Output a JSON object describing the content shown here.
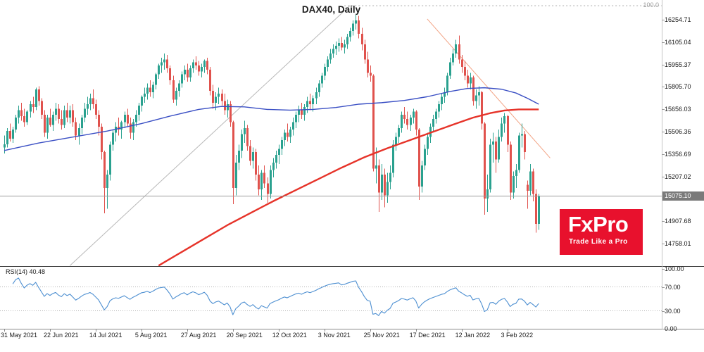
{
  "meta": {
    "title": "DAX40, Daily"
  },
  "logo": {
    "name": "FxPro",
    "tagline": "Trade Like a Pro",
    "bg": "#e8112d"
  },
  "price_axis": {
    "ticks": [
      "16254.71",
      "16105.04",
      "15955.37",
      "15805.70",
      "15656.03",
      "15506.36",
      "15356.69",
      "15207.02",
      "14907.68",
      "14758.01"
    ],
    "current_price": "15075.10",
    "fib_label": "100.0"
  },
  "rsi": {
    "label": "RSI(14) 40.48",
    "period": 14,
    "last_value": 40.48,
    "ticks": [
      "100.00",
      "70.00",
      "30.00",
      "0.00"
    ],
    "levels": [
      70,
      30
    ]
  },
  "time_axis": {
    "labels": [
      "31 May 2021",
      "22 Jun 2021",
      "14 Jul 2021",
      "5 Aug 2021",
      "27 Aug 2021",
      "20 Sep 2021",
      "12 Oct 2021",
      "3 Nov 2021",
      "25 Nov 2021",
      "17 Dec 2021",
      "12 Jan 2022",
      "3 Feb 2022"
    ],
    "label_indices": [
      0,
      16,
      32,
      48,
      64,
      80,
      96,
      112,
      128,
      144,
      160,
      176
    ]
  },
  "chart_data": {
    "type": "candlestick",
    "symbol": "DAX40",
    "timeframe": "Daily",
    "title": "DAX40, Daily",
    "ylim": [
      14602,
      16387
    ],
    "price_tick_step": 149.67,
    "current_price": 15075.1,
    "grid": false,
    "colors": {
      "up": "#2aa18f",
      "down": "#e0524d",
      "ma_blue": "#3a4fc4",
      "ma_red": "#e63329",
      "trend_gray": "#b8b8b8",
      "trend_salmon": "#f2a384",
      "rsi": "#4d8fd1",
      "price_line": "#9b9b9b",
      "fib": "#a8a8a8"
    },
    "candles": [
      [
        15400,
        15480,
        15360,
        15421
      ],
      [
        15421,
        15530,
        15400,
        15510
      ],
      [
        15510,
        15560,
        15440,
        15460
      ],
      [
        15460,
        15540,
        15430,
        15520
      ],
      [
        15520,
        15620,
        15500,
        15600
      ],
      [
        15600,
        15680,
        15560,
        15650
      ],
      [
        15650,
        15700,
        15580,
        15610
      ],
      [
        15610,
        15660,
        15540,
        15570
      ],
      [
        15570,
        15650,
        15550,
        15640
      ],
      [
        15640,
        15710,
        15600,
        15690
      ],
      [
        15690,
        15740,
        15630,
        15670
      ],
      [
        15670,
        15800,
        15650,
        15790
      ],
      [
        15790,
        15810,
        15680,
        15710
      ],
      [
        15710,
        15730,
        15590,
        15620
      ],
      [
        15620,
        15650,
        15470,
        15500
      ],
      [
        15500,
        15620,
        15460,
        15600
      ],
      [
        15600,
        15660,
        15540,
        15550
      ],
      [
        15550,
        15640,
        15510,
        15620
      ],
      [
        15620,
        15700,
        15580,
        15660
      ],
      [
        15660,
        15690,
        15560,
        15590
      ],
      [
        15590,
        15650,
        15520,
        15550
      ],
      [
        15550,
        15680,
        15530,
        15650
      ],
      [
        15650,
        15700,
        15570,
        15600
      ],
      [
        15600,
        15680,
        15560,
        15650
      ],
      [
        15650,
        15690,
        15540,
        15570
      ],
      [
        15570,
        15600,
        15450,
        15480
      ],
      [
        15480,
        15560,
        15420,
        15530
      ],
      [
        15530,
        15620,
        15490,
        15600
      ],
      [
        15600,
        15700,
        15570,
        15660
      ],
      [
        15660,
        15740,
        15620,
        15690
      ],
      [
        15690,
        15760,
        15650,
        15730
      ],
      [
        15730,
        15790,
        15660,
        15690
      ],
      [
        15690,
        15720,
        15590,
        15620
      ],
      [
        15620,
        15650,
        15480,
        15540
      ],
      [
        15540,
        15560,
        15320,
        15370
      ],
      [
        15370,
        15380,
        14960,
        15130
      ],
      [
        15130,
        15250,
        14990,
        15220
      ],
      [
        15220,
        15440,
        15180,
        15420
      ],
      [
        15420,
        15520,
        15380,
        15500
      ],
      [
        15500,
        15570,
        15440,
        15540
      ],
      [
        15540,
        15600,
        15480,
        15520
      ],
      [
        15520,
        15580,
        15460,
        15570
      ],
      [
        15570,
        15640,
        15530,
        15620
      ],
      [
        15620,
        15660,
        15540,
        15560
      ],
      [
        15560,
        15600,
        15460,
        15500
      ],
      [
        15500,
        15590,
        15450,
        15570
      ],
      [
        15570,
        15650,
        15540,
        15620
      ],
      [
        15620,
        15700,
        15580,
        15680
      ],
      [
        15680,
        15750,
        15640,
        15740
      ],
      [
        15740,
        15800,
        15700,
        15760
      ],
      [
        15760,
        15830,
        15720,
        15800
      ],
      [
        15800,
        15850,
        15740,
        15770
      ],
      [
        15770,
        15840,
        15730,
        15820
      ],
      [
        15820,
        15900,
        15790,
        15890
      ],
      [
        15890,
        15960,
        15860,
        15950
      ],
      [
        15950,
        16000,
        15900,
        15970
      ],
      [
        15970,
        16030,
        15920,
        15990
      ],
      [
        15990,
        16020,
        15900,
        15930
      ],
      [
        15930,
        15950,
        15820,
        15850
      ],
      [
        15850,
        15880,
        15700,
        15720
      ],
      [
        15720,
        15800,
        15680,
        15780
      ],
      [
        15780,
        15850,
        15740,
        15830
      ],
      [
        15830,
        15910,
        15800,
        15890
      ],
      [
        15890,
        15950,
        15850,
        15920
      ],
      [
        15920,
        15960,
        15840,
        15870
      ],
      [
        15870,
        15950,
        15840,
        15930
      ],
      [
        15930,
        15990,
        15900,
        15970
      ],
      [
        15970,
        16010,
        15920,
        15950
      ],
      [
        15950,
        15980,
        15880,
        15910
      ],
      [
        15910,
        15960,
        15870,
        15940
      ],
      [
        15940,
        15990,
        15900,
        15980
      ],
      [
        15980,
        16000,
        15890,
        15920
      ],
      [
        15920,
        15940,
        15750,
        15780
      ],
      [
        15780,
        15820,
        15660,
        15700
      ],
      [
        15700,
        15770,
        15650,
        15740
      ],
      [
        15740,
        15800,
        15690,
        15760
      ],
      [
        15760,
        15790,
        15680,
        15710
      ],
      [
        15710,
        15760,
        15620,
        15650
      ],
      [
        15650,
        15720,
        15600,
        15690
      ],
      [
        15690,
        15710,
        15540,
        15570
      ],
      [
        15570,
        15580,
        15020,
        15130
      ],
      [
        15130,
        15350,
        15080,
        15300
      ],
      [
        15300,
        15420,
        15250,
        15380
      ],
      [
        15380,
        15520,
        15330,
        15490
      ],
      [
        15490,
        15580,
        15430,
        15530
      ],
      [
        15530,
        15550,
        15380,
        15410
      ],
      [
        15410,
        15450,
        15280,
        15310
      ],
      [
        15310,
        15400,
        15260,
        15370
      ],
      [
        15370,
        15390,
        15180,
        15220
      ],
      [
        15220,
        15280,
        15080,
        15120
      ],
      [
        15120,
        15250,
        15050,
        15230
      ],
      [
        15230,
        15280,
        15130,
        15160
      ],
      [
        15160,
        15200,
        15030,
        15090
      ],
      [
        15090,
        15280,
        15060,
        15250
      ],
      [
        15250,
        15330,
        15200,
        15300
      ],
      [
        15300,
        15380,
        15260,
        15350
      ],
      [
        15350,
        15420,
        15290,
        15390
      ],
      [
        15390,
        15470,
        15350,
        15450
      ],
      [
        15450,
        15520,
        15410,
        15500
      ],
      [
        15500,
        15560,
        15440,
        15470
      ],
      [
        15470,
        15540,
        15430,
        15520
      ],
      [
        15520,
        15600,
        15480,
        15570
      ],
      [
        15570,
        15640,
        15530,
        15620
      ],
      [
        15620,
        15680,
        15570,
        15650
      ],
      [
        15650,
        15700,
        15590,
        15620
      ],
      [
        15620,
        15690,
        15580,
        15670
      ],
      [
        15670,
        15740,
        15630,
        15710
      ],
      [
        15710,
        15760,
        15650,
        15690
      ],
      [
        15690,
        15750,
        15640,
        15730
      ],
      [
        15730,
        15800,
        15690,
        15770
      ],
      [
        15770,
        15850,
        15740,
        15830
      ],
      [
        15830,
        15900,
        15800,
        15880
      ],
      [
        15880,
        15960,
        15850,
        15940
      ],
      [
        15940,
        16010,
        15910,
        15990
      ],
      [
        15990,
        16060,
        15960,
        16030
      ],
      [
        16030,
        16090,
        16000,
        16060
      ],
      [
        16060,
        16110,
        16020,
        16080
      ],
      [
        16080,
        16130,
        16040,
        16100
      ],
      [
        16100,
        16140,
        16050,
        16070
      ],
      [
        16070,
        16120,
        16030,
        16090
      ],
      [
        16090,
        16160,
        16060,
        16140
      ],
      [
        16140,
        16200,
        16110,
        16180
      ],
      [
        16180,
        16250,
        16150,
        16230
      ],
      [
        16230,
        16290,
        16190,
        16250
      ],
      [
        16250,
        16280,
        16130,
        16160
      ],
      [
        16160,
        16200,
        16050,
        16090
      ],
      [
        16090,
        16120,
        15960,
        15990
      ],
      [
        15990,
        16040,
        15870,
        15900
      ],
      [
        15900,
        15950,
        15840,
        15880
      ],
      [
        15880,
        15890,
        15240,
        15260
      ],
      [
        15260,
        15400,
        15160,
        15280
      ],
      [
        15280,
        15320,
        14970,
        15100
      ],
      [
        15100,
        15290,
        15050,
        15220
      ],
      [
        15220,
        15260,
        15000,
        15080
      ],
      [
        15080,
        15230,
        15030,
        15170
      ],
      [
        15170,
        15280,
        15120,
        15230
      ],
      [
        15230,
        15450,
        15200,
        15420
      ],
      [
        15420,
        15500,
        15380,
        15470
      ],
      [
        15470,
        15550,
        15430,
        15530
      ],
      [
        15530,
        15640,
        15500,
        15620
      ],
      [
        15620,
        15670,
        15560,
        15590
      ],
      [
        15590,
        15640,
        15520,
        15550
      ],
      [
        15550,
        15620,
        15510,
        15600
      ],
      [
        15600,
        15660,
        15560,
        15640
      ],
      [
        15640,
        15650,
        15480,
        15520
      ],
      [
        15520,
        15530,
        15050,
        15140
      ],
      [
        15140,
        15310,
        15100,
        15280
      ],
      [
        15280,
        15420,
        15250,
        15390
      ],
      [
        15390,
        15500,
        15350,
        15470
      ],
      [
        15470,
        15560,
        15430,
        15540
      ],
      [
        15540,
        15620,
        15510,
        15590
      ],
      [
        15590,
        15660,
        15560,
        15640
      ],
      [
        15640,
        15710,
        15600,
        15690
      ],
      [
        15690,
        15760,
        15650,
        15740
      ],
      [
        15740,
        15800,
        15700,
        15770
      ],
      [
        15770,
        15900,
        15750,
        15880
      ],
      [
        15880,
        16000,
        15860,
        15970
      ],
      [
        15970,
        16060,
        15950,
        16030
      ],
      [
        16030,
        16120,
        16000,
        16090
      ],
      [
        16090,
        16150,
        15960,
        15990
      ],
      [
        15990,
        16020,
        15900,
        15940
      ],
      [
        15940,
        15980,
        15850,
        15880
      ],
      [
        15880,
        15920,
        15800,
        15830
      ],
      [
        15830,
        15900,
        15790,
        15870
      ],
      [
        15870,
        15880,
        15680,
        15710
      ],
      [
        15710,
        15790,
        15660,
        15750
      ],
      [
        15750,
        15810,
        15680,
        15770
      ],
      [
        15770,
        15780,
        15520,
        15560
      ],
      [
        15560,
        15570,
        14950,
        15060
      ],
      [
        15060,
        15220,
        14970,
        15120
      ],
      [
        15120,
        15460,
        15100,
        15420
      ],
      [
        15420,
        15500,
        15300,
        15440
      ],
      [
        15440,
        15470,
        15230,
        15320
      ],
      [
        15320,
        15520,
        15300,
        15470
      ],
      [
        15470,
        15600,
        15440,
        15560
      ],
      [
        15560,
        15630,
        15500,
        15610
      ],
      [
        15610,
        15620,
        15370,
        15420
      ],
      [
        15420,
        15440,
        15050,
        15100
      ],
      [
        15100,
        15240,
        15060,
        15210
      ],
      [
        15210,
        15290,
        15130,
        15250
      ],
      [
        15250,
        15500,
        15230,
        15480
      ],
      [
        15480,
        15560,
        15400,
        15490
      ],
      [
        15490,
        15510,
        15320,
        15370
      ],
      [
        15150,
        15180,
        14990,
        15110
      ],
      [
        15110,
        15290,
        15080,
        15240
      ],
      [
        15240,
        15260,
        15040,
        15090
      ],
      [
        15090,
        15120,
        14830,
        14890
      ],
      [
        14890,
        15090,
        14850,
        15075
      ]
    ],
    "ma_blue_points": [
      [
        0,
        15380
      ],
      [
        12,
        15430
      ],
      [
        24,
        15470
      ],
      [
        36,
        15510
      ],
      [
        48,
        15560
      ],
      [
        58,
        15610
      ],
      [
        68,
        15655
      ],
      [
        76,
        15675
      ],
      [
        84,
        15672
      ],
      [
        92,
        15655
      ],
      [
        100,
        15650
      ],
      [
        108,
        15655
      ],
      [
        116,
        15668
      ],
      [
        124,
        15690
      ],
      [
        132,
        15700
      ],
      [
        140,
        15715
      ],
      [
        148,
        15740
      ],
      [
        156,
        15775
      ],
      [
        162,
        15795
      ],
      [
        168,
        15800
      ],
      [
        174,
        15790
      ],
      [
        179,
        15765
      ],
      [
        183,
        15730
      ],
      [
        187,
        15690
      ]
    ],
    "ma_red_points": [
      [
        54,
        14610
      ],
      [
        62,
        14700
      ],
      [
        70,
        14790
      ],
      [
        78,
        14880
      ],
      [
        86,
        14960
      ],
      [
        94,
        15040
      ],
      [
        102,
        15115
      ],
      [
        110,
        15190
      ],
      [
        118,
        15265
      ],
      [
        126,
        15335
      ],
      [
        134,
        15395
      ],
      [
        142,
        15450
      ],
      [
        150,
        15505
      ],
      [
        158,
        15560
      ],
      [
        164,
        15600
      ],
      [
        170,
        15630
      ],
      [
        175,
        15648
      ],
      [
        180,
        15655
      ],
      [
        187,
        15655
      ]
    ],
    "trendlines": [
      {
        "name": "ascending-support",
        "color": "#b8b8b8",
        "points": [
          [
            23,
            14610
          ],
          [
            121,
            16350
          ]
        ]
      },
      {
        "name": "descending-resistance",
        "color": "#f2a384",
        "points": [
          [
            148,
            16260
          ],
          [
            191,
            15330
          ]
        ]
      }
    ],
    "fib_level": {
      "price": 16349,
      "label": "100.0",
      "from_index": 119
    }
  }
}
